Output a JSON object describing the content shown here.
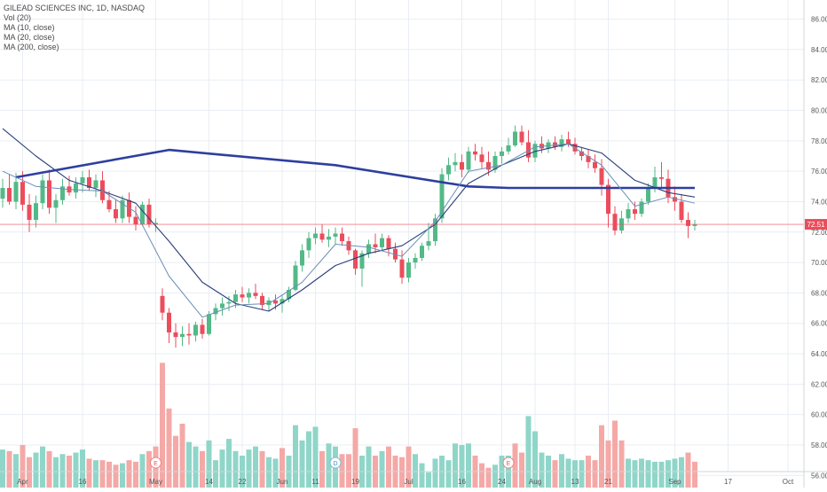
{
  "legend": {
    "title": "GILEAD SCIENCES INC, 1D, NASDAQ",
    "vol": "Vol (20)",
    "ma10": "MA (10, close)",
    "ma20": "MA (20, close)",
    "ma200": "MA (200, close)"
  },
  "colors": {
    "up": "#53b987",
    "down": "#eb4d5c",
    "vol_up": "#8fd6c9",
    "vol_down": "#f4a9a7",
    "ma10": "#6a8fb5",
    "ma20": "#2a3f7a",
    "ma200": "#2e3f9e",
    "price_line": "#eb4d5c",
    "grid": "#e9edf2"
  },
  "chart_data": {
    "type": "candlestick",
    "y_ticks": [
      "86.00",
      "84.00",
      "82.00",
      "80.00",
      "78.00",
      "76.00",
      "74.00",
      "72.00",
      "70.00",
      "68.00",
      "66.00",
      "64.00",
      "62.00",
      "60.00",
      "58.00",
      "56.00"
    ],
    "ylim": [
      55.2,
      87.2
    ],
    "x_labels": [
      "Apr",
      "16",
      "May",
      "14",
      "22",
      "Jun",
      "11",
      "19",
      "Jul",
      "16",
      "24",
      "Aug",
      "13",
      "21",
      "Sep",
      "17",
      "Oct"
    ],
    "last_price": "72.51",
    "event_markers": [
      "E",
      "D",
      "E"
    ],
    "candles": [
      [
        74.2,
        75.5,
        73.6,
        74.9
      ],
      [
        74.9,
        75.8,
        73.8,
        74.0
      ],
      [
        74.0,
        75.9,
        73.5,
        75.3
      ],
      [
        75.3,
        76.0,
        73.4,
        73.8
      ],
      [
        73.8,
        74.5,
        72.0,
        72.8
      ],
      [
        72.8,
        74.4,
        72.3,
        73.9
      ],
      [
        73.9,
        75.8,
        73.5,
        75.4
      ],
      [
        75.4,
        76.1,
        73.2,
        73.6
      ],
      [
        73.6,
        74.5,
        72.6,
        74.1
      ],
      [
        74.1,
        75.5,
        73.8,
        75.0
      ],
      [
        75.0,
        75.7,
        74.4,
        74.6
      ],
      [
        74.6,
        75.6,
        74.2,
        75.2
      ],
      [
        75.2,
        76.0,
        74.6,
        75.6
      ],
      [
        75.6,
        76.1,
        74.7,
        74.9
      ],
      [
        74.9,
        75.8,
        74.3,
        75.4
      ],
      [
        75.4,
        76.0,
        73.9,
        74.1
      ],
      [
        74.1,
        74.7,
        73.3,
        73.5
      ],
      [
        73.5,
        74.1,
        72.6,
        72.9
      ],
      [
        72.9,
        74.4,
        72.6,
        74.1
      ],
      [
        74.1,
        74.6,
        72.6,
        73.0
      ],
      [
        73.0,
        73.7,
        72.1,
        72.5
      ],
      [
        72.5,
        74.0,
        72.4,
        73.8
      ],
      [
        73.8,
        74.2,
        72.3,
        72.5
      ],
      [
        72.5,
        72.9,
        72.0,
        72.6
      ],
      [
        67.8,
        68.3,
        66.2,
        66.7
      ],
      [
        66.7,
        67.0,
        64.7,
        65.4
      ],
      [
        65.4,
        66.0,
        64.4,
        65.1
      ],
      [
        65.1,
        65.8,
        64.5,
        65.3
      ],
      [
        65.3,
        66.0,
        64.6,
        65.2
      ],
      [
        65.2,
        66.1,
        64.8,
        65.9
      ],
      [
        65.9,
        66.3,
        65.0,
        65.3
      ],
      [
        65.3,
        66.8,
        65.2,
        66.6
      ],
      [
        66.6,
        67.3,
        66.2,
        67.0
      ],
      [
        67.0,
        67.7,
        66.5,
        67.3
      ],
      [
        67.3,
        67.8,
        66.8,
        67.4
      ],
      [
        67.4,
        68.2,
        67.0,
        67.9
      ],
      [
        67.9,
        68.4,
        67.4,
        67.7
      ],
      [
        67.7,
        68.3,
        67.3,
        68.0
      ],
      [
        68.0,
        68.6,
        67.6,
        67.8
      ],
      [
        67.8,
        68.0,
        66.9,
        67.2
      ],
      [
        67.2,
        67.7,
        66.8,
        67.5
      ],
      [
        67.5,
        67.9,
        66.9,
        67.3
      ],
      [
        67.3,
        67.9,
        66.7,
        67.6
      ],
      [
        67.6,
        68.4,
        67.4,
        68.2
      ],
      [
        68.2,
        70.1,
        68.1,
        69.8
      ],
      [
        69.8,
        71.2,
        69.4,
        70.8
      ],
      [
        70.8,
        72.0,
        70.3,
        71.6
      ],
      [
        71.6,
        72.3,
        71.2,
        71.9
      ],
      [
        71.9,
        72.5,
        71.3,
        71.5
      ],
      [
        71.5,
        72.2,
        71.0,
        71.7
      ],
      [
        71.7,
        72.3,
        71.2,
        71.9
      ],
      [
        71.9,
        72.3,
        71.1,
        71.4
      ],
      [
        71.4,
        71.7,
        70.5,
        70.8
      ],
      [
        70.8,
        70.9,
        69.2,
        69.6
      ],
      [
        69.6,
        70.8,
        68.4,
        70.6
      ],
      [
        70.6,
        71.5,
        70.3,
        71.2
      ],
      [
        71.2,
        71.9,
        70.6,
        71.0
      ],
      [
        71.0,
        71.9,
        70.8,
        71.6
      ],
      [
        71.6,
        71.8,
        70.4,
        70.9
      ],
      [
        70.9,
        71.3,
        70.0,
        70.2
      ],
      [
        70.2,
        70.8,
        68.6,
        69.0
      ],
      [
        69.0,
        70.3,
        68.7,
        70.0
      ],
      [
        70.0,
        70.6,
        69.6,
        70.3
      ],
      [
        70.3,
        71.3,
        70.1,
        71.1
      ],
      [
        71.1,
        72.6,
        70.8,
        71.4
      ],
      [
        71.4,
        73.2,
        71.1,
        72.9
      ],
      [
        72.9,
        76.2,
        72.6,
        75.8
      ],
      [
        75.8,
        76.9,
        75.4,
        76.4
      ],
      [
        76.4,
        77.2,
        76.0,
        76.6
      ],
      [
        76.6,
        77.1,
        75.6,
        76.1
      ],
      [
        76.1,
        77.6,
        75.9,
        77.3
      ],
      [
        77.3,
        77.8,
        76.7,
        77.1
      ],
      [
        77.1,
        77.6,
        76.2,
        76.6
      ],
      [
        76.6,
        77.3,
        75.7,
        76.1
      ],
      [
        76.1,
        77.3,
        75.9,
        77.0
      ],
      [
        77.0,
        77.6,
        76.5,
        77.3
      ],
      [
        77.3,
        78.2,
        77.1,
        77.7
      ],
      [
        77.7,
        79.0,
        77.6,
        78.6
      ],
      [
        78.6,
        79.0,
        77.7,
        77.9
      ],
      [
        77.9,
        78.7,
        76.6,
        76.9
      ],
      [
        76.9,
        78.0,
        76.6,
        77.8
      ],
      [
        77.8,
        78.3,
        77.2,
        77.5
      ],
      [
        77.5,
        78.1,
        77.2,
        77.9
      ],
      [
        77.9,
        78.3,
        77.4,
        77.6
      ],
      [
        77.6,
        78.4,
        77.3,
        78.1
      ],
      [
        78.1,
        78.6,
        77.6,
        77.8
      ],
      [
        77.8,
        78.2,
        77.1,
        77.3
      ],
      [
        77.3,
        77.6,
        76.7,
        77.0
      ],
      [
        77.0,
        77.4,
        76.2,
        76.6
      ],
      [
        76.6,
        77.1,
        75.9,
        76.2
      ],
      [
        76.2,
        76.8,
        74.4,
        75.1
      ],
      [
        75.1,
        75.5,
        72.3,
        73.2
      ],
      [
        73.2,
        73.7,
        71.8,
        72.1
      ],
      [
        72.1,
        73.4,
        71.9,
        72.9
      ],
      [
        72.9,
        73.9,
        72.6,
        73.5
      ],
      [
        73.5,
        74.0,
        72.8,
        73.2
      ],
      [
        73.2,
        74.2,
        73.0,
        74.0
      ],
      [
        74.0,
        75.2,
        73.8,
        74.9
      ],
      [
        74.9,
        76.3,
        74.6,
        75.6
      ],
      [
        75.6,
        76.6,
        74.9,
        75.5
      ],
      [
        75.5,
        76.1,
        73.9,
        74.3
      ],
      [
        74.3,
        75.0,
        73.4,
        74.0
      ],
      [
        74.0,
        74.5,
        72.6,
        72.8
      ],
      [
        72.8,
        73.3,
        71.6,
        72.4
      ],
      [
        72.4,
        72.8,
        72.1,
        72.51
      ]
    ],
    "volumes": [
      [
        57.7,
        "u"
      ],
      [
        57.6,
        "d"
      ],
      [
        57.4,
        "u"
      ],
      [
        58.0,
        "d"
      ],
      [
        57.2,
        "d"
      ],
      [
        57.5,
        "u"
      ],
      [
        57.9,
        "u"
      ],
      [
        57.6,
        "d"
      ],
      [
        57.2,
        "u"
      ],
      [
        57.4,
        "u"
      ],
      [
        57.3,
        "d"
      ],
      [
        57.5,
        "u"
      ],
      [
        57.7,
        "u"
      ],
      [
        57.1,
        "d"
      ],
      [
        57.0,
        "u"
      ],
      [
        57.0,
        "d"
      ],
      [
        56.9,
        "d"
      ],
      [
        56.7,
        "d"
      ],
      [
        56.8,
        "u"
      ],
      [
        57.0,
        "d"
      ],
      [
        56.9,
        "d"
      ],
      [
        57.4,
        "u"
      ],
      [
        57.6,
        "d"
      ],
      [
        57.9,
        "d"
      ],
      [
        63.4,
        "d"
      ],
      [
        60.4,
        "d"
      ],
      [
        58.6,
        "d"
      ],
      [
        59.4,
        "d"
      ],
      [
        58.2,
        "u"
      ],
      [
        57.9,
        "u"
      ],
      [
        57.6,
        "d"
      ],
      [
        58.3,
        "u"
      ],
      [
        57.0,
        "u"
      ],
      [
        57.7,
        "u"
      ],
      [
        58.4,
        "u"
      ],
      [
        57.6,
        "u"
      ],
      [
        57.3,
        "u"
      ],
      [
        57.7,
        "u"
      ],
      [
        57.9,
        "u"
      ],
      [
        57.6,
        "d"
      ],
      [
        57.2,
        "u"
      ],
      [
        57.1,
        "u"
      ],
      [
        57.8,
        "d"
      ],
      [
        57.3,
        "u"
      ],
      [
        59.3,
        "u"
      ],
      [
        58.3,
        "u"
      ],
      [
        58.9,
        "u"
      ],
      [
        59.2,
        "u"
      ],
      [
        57.6,
        "d"
      ],
      [
        58.1,
        "u"
      ],
      [
        57.9,
        "u"
      ],
      [
        57.4,
        "d"
      ],
      [
        57.4,
        "d"
      ],
      [
        59.1,
        "d"
      ],
      [
        57.3,
        "u"
      ],
      [
        57.9,
        "u"
      ],
      [
        57.3,
        "d"
      ],
      [
        57.6,
        "u"
      ],
      [
        57.9,
        "d"
      ],
      [
        57.3,
        "d"
      ],
      [
        57.2,
        "d"
      ],
      [
        57.9,
        "d"
      ],
      [
        57.4,
        "u"
      ],
      [
        56.8,
        "u"
      ],
      [
        56.2,
        "u"
      ],
      [
        57.1,
        "u"
      ],
      [
        57.3,
        "u"
      ],
      [
        57.0,
        "u"
      ],
      [
        58.1,
        "u"
      ],
      [
        58.0,
        "u"
      ],
      [
        58.1,
        "u"
      ],
      [
        57.3,
        "d"
      ],
      [
        56.8,
        "d"
      ],
      [
        56.5,
        "d"
      ],
      [
        56.7,
        "u"
      ],
      [
        57.3,
        "u"
      ],
      [
        57.3,
        "u"
      ],
      [
        58.1,
        "d"
      ],
      [
        57.5,
        "d"
      ],
      [
        59.9,
        "u"
      ],
      [
        58.9,
        "u"
      ],
      [
        57.5,
        "u"
      ],
      [
        57.3,
        "u"
      ],
      [
        57.0,
        "d"
      ],
      [
        57.4,
        "u"
      ],
      [
        57.1,
        "u"
      ],
      [
        57.0,
        "u"
      ],
      [
        57.0,
        "u"
      ],
      [
        57.3,
        "d"
      ],
      [
        57.0,
        "d"
      ],
      [
        59.3,
        "d"
      ],
      [
        58.3,
        "d"
      ],
      [
        59.6,
        "d"
      ],
      [
        58.3,
        "d"
      ],
      [
        57.1,
        "u"
      ],
      [
        57.0,
        "u"
      ],
      [
        57.1,
        "u"
      ],
      [
        57.0,
        "u"
      ],
      [
        56.9,
        "u"
      ],
      [
        56.9,
        "u"
      ],
      [
        57.0,
        "u"
      ],
      [
        57.1,
        "u"
      ],
      [
        57.2,
        "u"
      ],
      [
        57.5,
        "d"
      ],
      [
        56.9,
        "d"
      ]
    ],
    "ma200": [
      [
        2,
        75.6
      ],
      [
        25,
        77.4
      ],
      [
        50,
        76.4
      ],
      [
        70,
        75.0
      ],
      [
        76,
        74.9
      ],
      [
        90,
        74.9
      ],
      [
        104,
        74.9
      ]
    ],
    "ma20": [
      [
        0,
        78.8
      ],
      [
        5,
        77.0
      ],
      [
        10,
        75.4
      ],
      [
        15,
        74.7
      ],
      [
        20,
        73.9
      ],
      [
        25,
        71.4
      ],
      [
        30,
        68.7
      ],
      [
        35,
        67.3
      ],
      [
        40,
        66.8
      ],
      [
        45,
        68.2
      ],
      [
        50,
        69.8
      ],
      [
        55,
        70.6
      ],
      [
        60,
        71.1
      ],
      [
        65,
        72.5
      ],
      [
        70,
        75.2
      ],
      [
        75,
        76.4
      ],
      [
        80,
        77.3
      ],
      [
        85,
        77.8
      ],
      [
        90,
        77.2
      ],
      [
        95,
        75.4
      ],
      [
        100,
        74.6
      ],
      [
        104,
        74.3
      ]
    ],
    "ma10": [
      [
        0,
        76.0
      ],
      [
        5,
        75.0
      ],
      [
        10,
        74.8
      ],
      [
        15,
        74.7
      ],
      [
        20,
        73.3
      ],
      [
        25,
        69.1
      ],
      [
        30,
        66.4
      ],
      [
        35,
        67.2
      ],
      [
        40,
        67.3
      ],
      [
        45,
        68.7
      ],
      [
        50,
        71.2
      ],
      [
        55,
        71.0
      ],
      [
        60,
        70.4
      ],
      [
        65,
        72.7
      ],
      [
        70,
        76.0
      ],
      [
        75,
        76.4
      ],
      [
        80,
        77.6
      ],
      [
        85,
        77.8
      ],
      [
        90,
        76.4
      ],
      [
        95,
        73.7
      ],
      [
        100,
        74.3
      ],
      [
        104,
        73.9
      ]
    ]
  }
}
